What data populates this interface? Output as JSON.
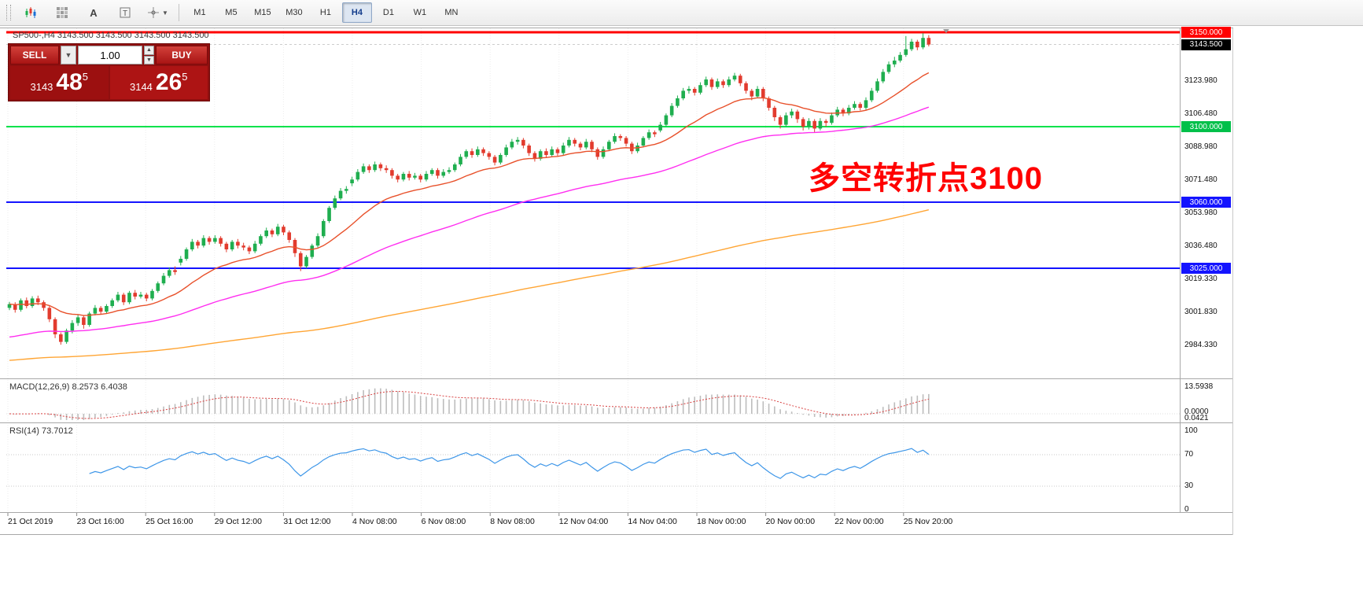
{
  "toolbar": {
    "tool_icons": [
      "candlestick-chart-icon",
      "indicator-grid-icon",
      "annotation-a-icon",
      "text-label-icon",
      "drawing-tools-icon"
    ],
    "timeframes": [
      "M1",
      "M5",
      "M15",
      "M30",
      "H1",
      "H4",
      "D1",
      "W1",
      "MN"
    ],
    "active_timeframe": "H4"
  },
  "trade_panel": {
    "sell_label": "SELL",
    "buy_label": "BUY",
    "volume": "1.00",
    "sell_price_prefix": "3143",
    "sell_price_big": "48",
    "sell_price_sup": "5",
    "buy_price_prefix": "3144",
    "buy_price_big": "26",
    "buy_price_sup": "5",
    "panel_color": "#8f0f0f",
    "button_color": "#b51c1c",
    "sell_box_color": "#9c1010",
    "buy_box_color": "#ad1414"
  },
  "chart": {
    "symbol_header": "SP500-,H4 3143.500 3143.500 3143.500 3143.500",
    "annotation": {
      "text": "多空转折点3100",
      "color": "#ff0000"
    },
    "current_price": 3143.5,
    "levels": [
      {
        "price": 3150,
        "color": "#ff0000",
        "width": 3
      },
      {
        "price": 3100,
        "color": "#00e24b",
        "width": 2
      },
      {
        "price": 3060,
        "color": "#1414ff",
        "width": 2
      },
      {
        "price": 3025,
        "color": "#1414ff",
        "width": 2
      }
    ],
    "price_axis": {
      "ticks": [
        "3123.980",
        "3106.480",
        "3088.980",
        "3071.480",
        "3053.980",
        "3036.480",
        "3019.330",
        "3001.830",
        "2984.330"
      ],
      "badges": [
        {
          "text": "3150.000",
          "color": "#ff0000"
        },
        {
          "text": "3143.500",
          "color": "#000000"
        },
        {
          "text": "3100.000",
          "color": "#00c04a"
        },
        {
          "text": "3060.000",
          "color": "#1414ff"
        },
        {
          "text": "3025.000",
          "color": "#1414ff"
        }
      ]
    }
  },
  "macd_panel": {
    "label": "MACD(12,26,9) 8.2573 6.4038",
    "values": [
      8.2573,
      6.4038
    ],
    "axis_labels": [
      "13.5938",
      "0.0000",
      "0.0421"
    ]
  },
  "rsi_panel": {
    "label": "RSI(14) 73.7012",
    "value": 73.7012,
    "axis_labels": [
      "100",
      "70",
      "30",
      "0"
    ],
    "levels": [
      70,
      30
    ]
  },
  "chart_data": {
    "type": "candlestick",
    "symbol": "SP500-",
    "timeframe": "H4",
    "ylim": [
      2984.33,
      3150
    ],
    "bull_color": "#1fae4f",
    "bear_color": "#e23b2e",
    "x_labels": [
      "21 Oct 2019",
      "23 Oct 16:00",
      "25 Oct 16:00",
      "29 Oct 12:00",
      "31 Oct 12:00",
      "4 Nov 08:00",
      "6 Nov 08:00",
      "8 Nov 08:00",
      "12 Nov 04:00",
      "14 Nov 04:00",
      "18 Nov 00:00",
      "20 Nov 00:00",
      "22 Nov 00:00",
      "25 Nov 20:00"
    ],
    "moving_averages": [
      {
        "name": "fast-ma",
        "period": 20,
        "color": "#e8512b",
        "seed_offset": 0
      },
      {
        "name": "mid-ma",
        "period": 65,
        "color": "#ff2ef0",
        "seed_offset": 18
      },
      {
        "name": "slow-ma",
        "period": 250,
        "color": "#ffa534",
        "seed_offset": 30
      }
    ],
    "indicators": {
      "macd": {
        "fast": 12,
        "slow": 26,
        "signal": 9
      },
      "rsi": {
        "period": 14
      }
    },
    "candles": [
      [
        3004,
        3007.2,
        3002.8,
        3006
      ],
      [
        3006,
        3007,
        3001.5,
        3003
      ],
      [
        3003,
        3009,
        3002,
        3008
      ],
      [
        3008,
        3009.5,
        3003.8,
        3005
      ],
      [
        3005,
        3010.2,
        3004,
        3009
      ],
      [
        3009,
        3010.5,
        3005.5,
        3007
      ],
      [
        3007,
        3008,
        3002.5,
        3004
      ],
      [
        3004,
        3005,
        2996.5,
        2998
      ],
      [
        2998,
        2999,
        2988,
        2990
      ],
      [
        2990,
        2991,
        2984.5,
        2986
      ],
      [
        2986,
        2993,
        2985,
        2992
      ],
      [
        2992,
        2997.5,
        2990.5,
        2996
      ],
      [
        2996,
        3000.5,
        2994.5,
        2999
      ],
      [
        2999,
        3000,
        2993,
        2995
      ],
      [
        2995,
        3002,
        2994,
        3001
      ],
      [
        3001,
        3005.5,
        3000,
        3004
      ],
      [
        3004,
        3005,
        3000.5,
        3002
      ],
      [
        3002,
        3006,
        3001,
        3005
      ],
      [
        3005,
        3009,
        3004,
        3008
      ],
      [
        3008,
        3012.5,
        3007,
        3011
      ],
      [
        3011,
        3012,
        3005.5,
        3007
      ],
      [
        3007,
        3013,
        3006,
        3012
      ],
      [
        3012,
        3013.5,
        3008.5,
        3010
      ],
      [
        3010,
        3012.5,
        3009,
        3011
      ],
      [
        3011,
        3012,
        3007.5,
        3009
      ],
      [
        3009,
        3014,
        3008,
        3013
      ],
      [
        3013,
        3018,
        3012,
        3017
      ],
      [
        3017,
        3022.5,
        3016,
        3021
      ],
      [
        3021,
        3025.5,
        3020,
        3024
      ],
      [
        3024,
        3026,
        3021.5,
        3023
      ],
      [
        3028,
        3031.5,
        3026.5,
        3030
      ],
      [
        3030,
        3036,
        3029,
        3035
      ],
      [
        3035,
        3040.5,
        3034,
        3039
      ],
      [
        3039,
        3040,
        3035.5,
        3037
      ],
      [
        3037,
        3042.5,
        3036,
        3041
      ],
      [
        3041,
        3042,
        3037.5,
        3039
      ],
      [
        3039,
        3042.5,
        3038,
        3041
      ],
      [
        3041,
        3042,
        3036.5,
        3038
      ],
      [
        3038,
        3039,
        3033.5,
        3035
      ],
      [
        3035,
        3040,
        3034,
        3039
      ],
      [
        3039,
        3040.5,
        3035.5,
        3037
      ],
      [
        3037,
        3038.5,
        3034.5,
        3036
      ],
      [
        3036,
        3037,
        3032.5,
        3034
      ],
      [
        3034,
        3039.5,
        3033,
        3038
      ],
      [
        3038,
        3043,
        3037,
        3042
      ],
      [
        3042,
        3046.5,
        3041,
        3045
      ],
      [
        3045,
        3046,
        3041.5,
        3043
      ],
      [
        3043,
        3048.5,
        3042,
        3047
      ],
      [
        3047,
        3048,
        3042.5,
        3044
      ],
      [
        3044,
        3045,
        3038.5,
        3040
      ],
      [
        3040,
        3041,
        3031,
        3033
      ],
      [
        3033,
        3034,
        3023.5,
        3026
      ],
      [
        3026,
        3032,
        3025,
        3031
      ],
      [
        3031,
        3038,
        3030,
        3037
      ],
      [
        3037,
        3043.5,
        3036,
        3042
      ],
      [
        3042,
        3051,
        3041,
        3050
      ],
      [
        3050,
        3058,
        3049,
        3057
      ],
      [
        3057,
        3063.5,
        3056,
        3062
      ],
      [
        3062,
        3067.5,
        3061,
        3066
      ],
      [
        3066,
        3068.5,
        3064.5,
        3067
      ],
      [
        3070,
        3073.5,
        3068.5,
        3072
      ],
      [
        3072,
        3077.5,
        3071,
        3076
      ],
      [
        3076,
        3080.5,
        3075,
        3079
      ],
      [
        3079,
        3080,
        3075.5,
        3077
      ],
      [
        3077,
        3081.5,
        3076,
        3080
      ],
      [
        3080,
        3081,
        3076.5,
        3078
      ],
      [
        3078,
        3079.5,
        3075.5,
        3077
      ],
      [
        3077,
        3078,
        3072.5,
        3074
      ],
      [
        3074,
        3075,
        3070.5,
        3072
      ],
      [
        3072,
        3076,
        3071,
        3075
      ],
      [
        3075,
        3076.5,
        3071.5,
        3073
      ],
      [
        3073,
        3075.5,
        3072,
        3074
      ],
      [
        3074,
        3075,
        3070.5,
        3072
      ],
      [
        3072,
        3076.5,
        3071,
        3075
      ],
      [
        3075,
        3078,
        3074,
        3077
      ],
      [
        3077,
        3078,
        3072.5,
        3074
      ],
      [
        3074,
        3077.5,
        3073,
        3076
      ],
      [
        3076,
        3078.5,
        3075,
        3077
      ],
      [
        3077,
        3081,
        3076,
        3080
      ],
      [
        3080,
        3085.5,
        3079,
        3084
      ],
      [
        3084,
        3088,
        3083,
        3087
      ],
      [
        3087,
        3088.5,
        3083.5,
        3085
      ],
      [
        3085,
        3089.5,
        3084,
        3088
      ],
      [
        3088,
        3089,
        3084.5,
        3086
      ],
      [
        3086,
        3087,
        3082.5,
        3084
      ],
      [
        3084,
        3085,
        3079.5,
        3081
      ],
      [
        3081,
        3086,
        3080,
        3085
      ],
      [
        3085,
        3090.5,
        3084,
        3089
      ],
      [
        3089,
        3093.5,
        3088,
        3092
      ],
      [
        3092,
        3094.5,
        3090.5,
        3093
      ],
      [
        3093,
        3094,
        3088.5,
        3090
      ],
      [
        3090,
        3091,
        3084.5,
        3086
      ],
      [
        3086,
        3087,
        3081.5,
        3083
      ],
      [
        3083,
        3088,
        3082,
        3087
      ],
      [
        3087,
        3088.5,
        3083.5,
        3085
      ],
      [
        3085,
        3089.5,
        3084,
        3088
      ],
      [
        3088,
        3089,
        3084.5,
        3086
      ],
      [
        3086,
        3091.5,
        3085,
        3090
      ],
      [
        3090,
        3094.5,
        3089,
        3093
      ],
      [
        3093,
        3094,
        3089.5,
        3091
      ],
      [
        3091,
        3092,
        3087.5,
        3089
      ],
      [
        3089,
        3093.5,
        3088,
        3092
      ],
      [
        3092,
        3093,
        3086.5,
        3088
      ],
      [
        3088,
        3089,
        3082.5,
        3084
      ],
      [
        3084,
        3089.5,
        3083,
        3088
      ],
      [
        3088,
        3093,
        3087,
        3092
      ],
      [
        3092,
        3096.5,
        3091,
        3095
      ],
      [
        3095,
        3096,
        3092.5,
        3094
      ],
      [
        3094,
        3095,
        3089.5,
        3091
      ],
      [
        3091,
        3092,
        3085.5,
        3087
      ],
      [
        3087,
        3091.5,
        3086,
        3090
      ],
      [
        3090,
        3095,
        3089,
        3094
      ],
      [
        3094,
        3098.5,
        3093,
        3097
      ],
      [
        3097,
        3098,
        3094.5,
        3096
      ],
      [
        3098,
        3102.5,
        3097,
        3101
      ],
      [
        3101,
        3107,
        3100,
        3106
      ],
      [
        3106,
        3112.5,
        3105,
        3111
      ],
      [
        3111,
        3116.5,
        3110,
        3115
      ],
      [
        3115,
        3120.5,
        3114,
        3119
      ],
      [
        3119,
        3121.5,
        3117.5,
        3120
      ],
      [
        3120,
        3121,
        3116.5,
        3118
      ],
      [
        3118,
        3123.5,
        3117,
        3122
      ],
      [
        3122,
        3126.5,
        3121,
        3125
      ],
      [
        3125,
        3126,
        3119.5,
        3121
      ],
      [
        3121,
        3125.5,
        3120,
        3124
      ],
      [
        3124,
        3125,
        3120.5,
        3122
      ],
      [
        3122,
        3126.5,
        3121,
        3125
      ],
      [
        3125,
        3128.5,
        3124,
        3127
      ],
      [
        3127,
        3128,
        3121.5,
        3123
      ],
      [
        3123,
        3124,
        3117.5,
        3119
      ],
      [
        3119,
        3120,
        3114,
        3116
      ],
      [
        3116,
        3121.5,
        3115,
        3120
      ],
      [
        3120,
        3121,
        3113.5,
        3115
      ],
      [
        3115,
        3116,
        3108.5,
        3110
      ],
      [
        3110,
        3111,
        3103,
        3105
      ],
      [
        3105,
        3106,
        3099,
        3101
      ],
      [
        3101,
        3107.5,
        3100,
        3106
      ],
      [
        3106,
        3109.5,
        3104.5,
        3108
      ],
      [
        3108,
        3109,
        3102,
        3104
      ],
      [
        3104,
        3105,
        3098,
        3100
      ],
      [
        3100,
        3104.5,
        3098.5,
        3103
      ],
      [
        3103,
        3104,
        3097,
        3099
      ],
      [
        3099,
        3104.5,
        3098,
        3103
      ],
      [
        3103,
        3104,
        3100,
        3102
      ],
      [
        3102,
        3107.5,
        3101,
        3106
      ],
      [
        3106,
        3110.5,
        3105,
        3109
      ],
      [
        3109,
        3110,
        3105.5,
        3107
      ],
      [
        3107,
        3111.5,
        3106,
        3110
      ],
      [
        3110,
        3113.5,
        3109,
        3112
      ],
      [
        3112,
        3113,
        3108.5,
        3110
      ],
      [
        3110,
        3115.5,
        3109,
        3114
      ],
      [
        3114,
        3120.5,
        3113,
        3119
      ],
      [
        3119,
        3125.5,
        3118,
        3124
      ],
      [
        3124,
        3130.5,
        3123,
        3129
      ],
      [
        3129,
        3134.5,
        3128,
        3133
      ],
      [
        3133,
        3137,
        3131.5,
        3135
      ],
      [
        3135,
        3139.5,
        3134,
        3138
      ],
      [
        3138,
        3148,
        3137,
        3141
      ],
      [
        3141,
        3146.5,
        3140,
        3145
      ],
      [
        3145,
        3146,
        3140.5,
        3142
      ],
      [
        3142,
        3149.5,
        3141,
        3147
      ],
      [
        3147,
        3148.5,
        3142.5,
        3143.5
      ]
    ]
  }
}
